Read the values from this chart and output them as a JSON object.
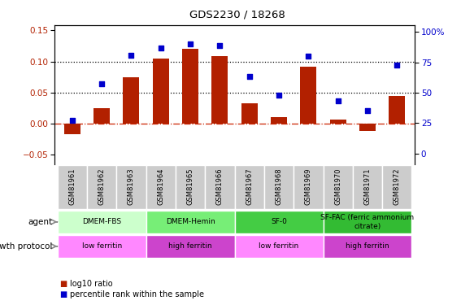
{
  "title": "GDS2230 / 18268",
  "samples": [
    "GSM81961",
    "GSM81962",
    "GSM81963",
    "GSM81964",
    "GSM81965",
    "GSM81966",
    "GSM81967",
    "GSM81968",
    "GSM81969",
    "GSM81970",
    "GSM81971",
    "GSM81972"
  ],
  "log10_ratio": [
    -0.017,
    0.025,
    0.075,
    0.105,
    0.12,
    0.108,
    0.033,
    0.011,
    0.092,
    0.006,
    -0.012,
    0.045
  ],
  "percentile_rank": [
    27,
    57,
    81,
    87,
    90,
    89,
    63,
    48,
    80,
    43,
    35,
    73
  ],
  "bar_color": "#B22000",
  "dot_color": "#0000CC",
  "ylim_left": [
    -0.065,
    0.158
  ],
  "ylim_right": [
    -8.67,
    105.33
  ],
  "yticks_left": [
    -0.05,
    0.0,
    0.05,
    0.1,
    0.15
  ],
  "yticks_right": [
    0,
    25,
    50,
    75,
    100
  ],
  "hline_y": [
    0.05,
    0.1
  ],
  "zero_line_color": "#CC2200",
  "agent_groups": [
    {
      "label": "DMEM-FBS",
      "start": 0,
      "end": 3,
      "color": "#CCFFCC"
    },
    {
      "label": "DMEM-Hemin",
      "start": 3,
      "end": 6,
      "color": "#66EE66"
    },
    {
      "label": "SF-0",
      "start": 6,
      "end": 9,
      "color": "#44DD44"
    },
    {
      "label": "SF-FAC (ferric ammonium\ncitrate)",
      "start": 9,
      "end": 12,
      "color": "#33CC33"
    }
  ],
  "growth_groups": [
    {
      "label": "low ferritin",
      "start": 0,
      "end": 3,
      "color": "#FF88FF"
    },
    {
      "label": "high ferritin",
      "start": 3,
      "end": 6,
      "color": "#CC44CC"
    },
    {
      "label": "low ferritin",
      "start": 6,
      "end": 9,
      "color": "#FF88FF"
    },
    {
      "label": "high ferritin",
      "start": 9,
      "end": 12,
      "color": "#CC44CC"
    }
  ],
  "legend_bar_label": "log10 ratio",
  "legend_dot_label": "percentile rank within the sample",
  "agent_label": "agent",
  "growth_label": "growth protocol",
  "tick_bg_color": "#CCCCCC",
  "chart_bg": "#FFFFFF"
}
